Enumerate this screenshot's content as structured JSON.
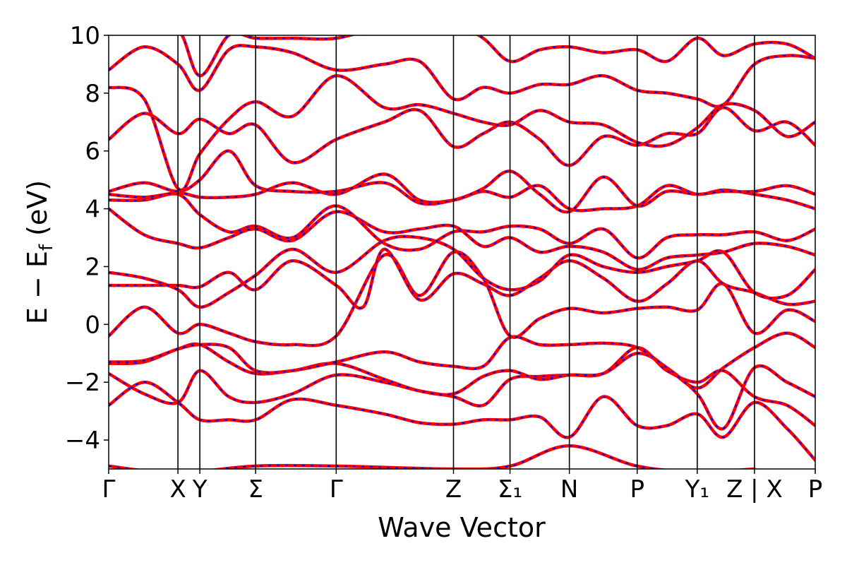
{
  "chart_data": {
    "type": "line",
    "title": "",
    "xlabel": "Wave Vector",
    "ylabel": "E − E_f (eV)",
    "ylabel_parts": {
      "main": "E − E",
      "sub": "f",
      "unit": " (eV)"
    },
    "ylim": [
      -5,
      10
    ],
    "yticks": [
      -4,
      -2,
      0,
      2,
      4,
      6,
      8,
      10
    ],
    "ytick_labels": [
      "−4",
      "−2",
      "0",
      "2",
      "4",
      "6",
      "8",
      "10"
    ],
    "grid": false,
    "legend": "none",
    "colors": {
      "band_a": "#0000ff",
      "band_b": "#ff0000",
      "vline": "#000000"
    },
    "high_symmetry_points": [
      {
        "label": "Γ",
        "k": 0.0
      },
      {
        "label": "X",
        "k": 0.98
      },
      {
        "label": "Y",
        "k": 1.29
      },
      {
        "label": "Σ",
        "k": 2.08
      },
      {
        "label": "Γ",
        "k": 3.22
      },
      {
        "label": "Z",
        "k": 4.88
      },
      {
        "label": "Σ₁",
        "k": 5.68
      },
      {
        "label": "N",
        "k": 6.52
      },
      {
        "label": "P",
        "k": 7.48
      },
      {
        "label": "Y₁",
        "k": 8.33
      },
      {
        "label": "Z | X",
        "k": 9.14
      },
      {
        "label": "P",
        "k": 10.0
      }
    ],
    "xlim": [
      0,
      10
    ],
    "series": [
      {
        "x": [
          0,
          0.98,
          1.29,
          2.08,
          3.22,
          4.88,
          5.68,
          6.52,
          7.48,
          8.33,
          9.14
        ],
        "values": [
          -4.9,
          -5.2,
          -5.1,
          -4.9,
          -4.9,
          -5.0,
          -4.9,
          -4.2,
          -4.9,
          -5.1,
          -5.0
        ]
      },
      {
        "x": [
          0,
          0.5,
          0.98,
          1.29,
          1.7,
          2.08,
          2.6,
          3.22,
          3.9,
          4.4,
          4.88,
          5.3,
          5.68,
          6.1,
          6.52,
          7.0,
          7.48,
          7.9,
          8.33,
          8.7,
          9.14,
          9.6,
          10.0
        ],
        "values": [
          -2.8,
          -2.0,
          -2.7,
          -3.3,
          -3.3,
          -3.3,
          -2.6,
          -2.8,
          -3.1,
          -3.4,
          -3.45,
          -3.3,
          -3.3,
          -3.2,
          -3.9,
          -2.5,
          -3.5,
          -3.5,
          -3.1,
          -3.9,
          -2.7,
          -3.6,
          -4.7
        ]
      },
      {
        "x": [
          0,
          0.5,
          0.98,
          1.29,
          1.7,
          2.08,
          2.6,
          3.22,
          3.9,
          4.4,
          4.88,
          5.3,
          5.68,
          6.1,
          6.52,
          7.0,
          7.48,
          7.9,
          8.33,
          8.7,
          9.14,
          9.6,
          10.0
        ],
        "values": [
          -1.7,
          -2.4,
          -2.7,
          -1.6,
          -2.5,
          -2.7,
          -2.4,
          -1.75,
          -2.0,
          -2.3,
          -2.5,
          -2.8,
          -1.9,
          -1.8,
          -1.75,
          -1.7,
          -0.8,
          -1.6,
          -2.0,
          -1.6,
          -2.5,
          -2.8,
          -3.5
        ]
      },
      {
        "x": [
          0,
          0.5,
          0.98,
          1.29,
          1.7,
          2.08,
          2.6,
          3.22,
          3.9,
          4.4,
          4.88,
          5.3,
          5.68,
          6.1,
          6.52,
          7.0,
          7.48,
          7.9,
          8.33,
          8.7,
          9.14,
          9.6,
          10.0
        ],
        "values": [
          -1.35,
          -1.3,
          -0.85,
          -0.7,
          -1.3,
          -1.7,
          -1.6,
          -1.35,
          -1.9,
          -2.3,
          -2.4,
          -1.8,
          -1.6,
          -1.9,
          -1.75,
          -1.7,
          -1.0,
          -1.5,
          -2.4,
          -3.6,
          -1.5,
          -2.0,
          -2.5
        ]
      },
      {
        "x": [
          0,
          0.5,
          0.98,
          1.29,
          1.7,
          2.08,
          2.6,
          3.22,
          3.9,
          4.4,
          4.88,
          5.3,
          5.68,
          6.1,
          6.52,
          7.0,
          7.48,
          7.9,
          8.33,
          8.7,
          9.14,
          9.6,
          10.0
        ],
        "values": [
          -1.3,
          -1.25,
          -0.85,
          -0.7,
          -0.8,
          -1.6,
          -1.6,
          -1.3,
          -0.95,
          -1.3,
          -1.45,
          -1.45,
          -0.45,
          -0.7,
          -0.7,
          -0.65,
          -0.8,
          -1.5,
          -2.2,
          -1.5,
          -0.8,
          -0.3,
          -0.8
        ]
      },
      {
        "x": [
          0,
          0.5,
          0.98,
          1.29,
          1.7,
          2.08,
          2.6,
          3.22,
          3.9,
          4.4,
          4.88,
          5.3,
          5.68,
          6.1,
          6.52,
          7.0,
          7.48,
          7.9,
          8.33,
          8.7,
          9.14,
          9.6,
          10.0
        ],
        "values": [
          -0.4,
          0.6,
          -0.3,
          0.0,
          -0.3,
          -0.6,
          -0.7,
          -0.4,
          2.4,
          1.0,
          2.5,
          1.6,
          -0.4,
          0.2,
          0.55,
          0.4,
          0.55,
          0.6,
          0.5,
          1.4,
          -0.3,
          0.5,
          0.1
        ]
      },
      {
        "x": [
          0,
          0.5,
          0.98,
          1.29,
          1.7,
          2.08,
          2.6,
          3.22,
          3.6,
          3.9,
          4.4,
          4.88,
          5.3,
          5.68,
          6.1,
          6.52,
          7.0,
          7.48,
          7.9,
          8.33,
          8.7,
          9.14,
          9.6,
          10.0
        ],
        "values": [
          1.35,
          1.35,
          1.35,
          1.3,
          1.8,
          1.2,
          2.2,
          1.35,
          0.6,
          2.6,
          0.85,
          1.75,
          1.4,
          1.0,
          1.6,
          2.2,
          1.6,
          0.8,
          1.4,
          2.2,
          1.4,
          1.1,
          0.7,
          0.8
        ]
      },
      {
        "x": [
          0,
          0.5,
          0.98,
          1.29,
          1.7,
          2.08,
          2.6,
          3.22,
          3.9,
          4.4,
          4.88,
          5.3,
          5.68,
          6.1,
          6.52,
          7.0,
          7.48,
          7.9,
          8.33,
          8.7,
          9.14,
          9.6,
          10.0
        ],
        "values": [
          1.8,
          1.6,
          1.2,
          0.6,
          1.1,
          1.7,
          2.6,
          1.8,
          2.9,
          3.0,
          2.6,
          1.6,
          1.2,
          1.5,
          2.4,
          2.0,
          1.8,
          2.0,
          2.2,
          2.5,
          1.1,
          1.0,
          1.9
        ]
      },
      {
        "x": [
          0,
          0.5,
          0.98,
          1.29,
          1.7,
          2.08,
          2.6,
          3.22,
          3.9,
          4.4,
          4.88,
          5.3,
          5.68,
          6.1,
          6.52,
          7.0,
          7.48,
          7.9,
          8.33,
          8.7,
          9.14,
          9.6,
          10.0
        ],
        "values": [
          4.0,
          3.1,
          2.8,
          2.65,
          3.0,
          3.3,
          2.9,
          3.9,
          3.2,
          3.3,
          3.4,
          2.7,
          3.0,
          2.5,
          2.7,
          2.5,
          1.9,
          2.3,
          2.4,
          2.5,
          2.8,
          2.7,
          2.4
        ]
      },
      {
        "x": [
          0,
          0.5,
          0.98,
          1.29,
          1.7,
          2.08,
          2.6,
          3.22,
          3.9,
          4.4,
          4.88,
          5.3,
          5.68,
          6.1,
          6.52,
          7.0,
          7.48,
          7.9,
          8.33,
          8.7,
          9.14,
          9.6,
          10.0
        ],
        "values": [
          4.3,
          4.3,
          4.5,
          3.8,
          3.2,
          3.4,
          3.0,
          4.1,
          2.8,
          2.6,
          3.2,
          3.2,
          3.4,
          3.3,
          2.8,
          3.3,
          2.3,
          3.0,
          3.1,
          3.1,
          3.2,
          2.9,
          3.3
        ]
      },
      {
        "x": [
          0,
          0.5,
          0.98,
          1.29,
          1.7,
          2.08,
          2.6,
          3.22,
          3.9,
          4.4,
          4.88,
          5.3,
          5.68,
          6.1,
          6.52,
          7.0,
          7.48,
          7.9,
          8.33,
          8.7,
          9.14,
          9.6,
          10.0
        ],
        "values": [
          4.5,
          4.4,
          4.55,
          4.4,
          4.4,
          4.5,
          4.9,
          4.5,
          5.2,
          4.3,
          4.3,
          4.6,
          4.4,
          4.8,
          4.0,
          4.0,
          4.1,
          4.8,
          4.5,
          4.65,
          4.5,
          4.3,
          4.0
        ]
      },
      {
        "x": [
          0,
          0.5,
          0.98,
          1.29,
          1.7,
          2.08,
          2.6,
          3.22,
          3.9,
          4.4,
          4.88,
          5.3,
          5.68,
          6.1,
          6.52,
          7.0,
          7.48,
          7.9,
          8.33,
          8.7,
          9.14,
          9.6,
          10.0
        ],
        "values": [
          4.6,
          4.9,
          4.6,
          5.0,
          6.0,
          4.8,
          4.6,
          4.6,
          4.9,
          4.2,
          4.3,
          4.7,
          5.3,
          4.5,
          3.9,
          5.1,
          4.1,
          4.6,
          4.5,
          4.6,
          4.6,
          4.8,
          4.5
        ]
      },
      {
        "x": [
          0,
          0.5,
          0.98,
          1.29,
          1.7,
          2.08,
          2.6,
          3.22,
          3.9,
          4.4,
          4.88,
          5.3,
          5.68,
          6.1,
          6.52,
          7.0,
          7.48,
          7.9,
          8.33,
          8.7,
          9.14,
          9.6,
          10.0
        ],
        "values": [
          6.4,
          7.3,
          6.6,
          7.1,
          6.6,
          6.9,
          5.6,
          6.4,
          7.0,
          7.4,
          6.15,
          6.6,
          7.0,
          6.4,
          5.5,
          6.5,
          6.2,
          6.6,
          6.6,
          7.5,
          6.7,
          7.0,
          6.2
        ]
      },
      {
        "x": [
          0,
          0.5,
          0.98,
          1.29,
          1.7,
          2.08,
          2.6,
          3.22,
          3.9,
          4.4,
          4.88,
          5.3,
          5.68,
          6.1,
          6.52,
          7.0,
          7.48,
          7.9,
          8.33,
          8.7,
          9.14,
          9.6,
          10.0
        ],
        "values": [
          8.2,
          7.8,
          4.7,
          5.9,
          7.1,
          7.7,
          7.2,
          8.6,
          7.5,
          7.6,
          7.3,
          7.0,
          6.9,
          7.4,
          7.0,
          6.9,
          6.3,
          6.2,
          6.8,
          7.6,
          7.4,
          6.5,
          7.0
        ]
      },
      {
        "x": [
          0,
          0.5,
          0.98,
          1.29,
          1.7,
          2.08,
          2.6,
          3.22,
          3.9,
          4.4,
          4.88,
          5.3,
          5.68,
          6.1,
          6.52,
          7.0,
          7.48,
          7.9,
          8.33,
          8.7,
          9.14,
          9.6,
          10.0
        ],
        "values": [
          8.8,
          9.6,
          9.0,
          8.1,
          9.5,
          9.6,
          9.4,
          8.8,
          9.0,
          9.1,
          7.8,
          8.2,
          8.0,
          8.3,
          8.3,
          8.6,
          8.1,
          8.0,
          7.8,
          7.6,
          9.0,
          9.3,
          9.2
        ]
      },
      {
        "x": [
          0,
          0.5,
          0.98,
          1.29,
          1.7,
          2.08,
          2.6,
          3.22,
          3.9,
          4.4,
          4.88,
          5.3,
          5.68,
          6.1,
          6.52,
          7.0,
          7.48,
          7.9,
          8.33,
          8.7,
          9.14,
          9.6,
          10.0
        ],
        "values": [
          10.3,
          10.1,
          10.2,
          8.6,
          10.0,
          9.9,
          9.9,
          9.9,
          10.3,
          10.2,
          10.4,
          9.9,
          9.1,
          9.5,
          9.6,
          9.4,
          9.5,
          9.1,
          9.9,
          9.3,
          9.7,
          9.7,
          9.2
        ]
      }
    ]
  }
}
